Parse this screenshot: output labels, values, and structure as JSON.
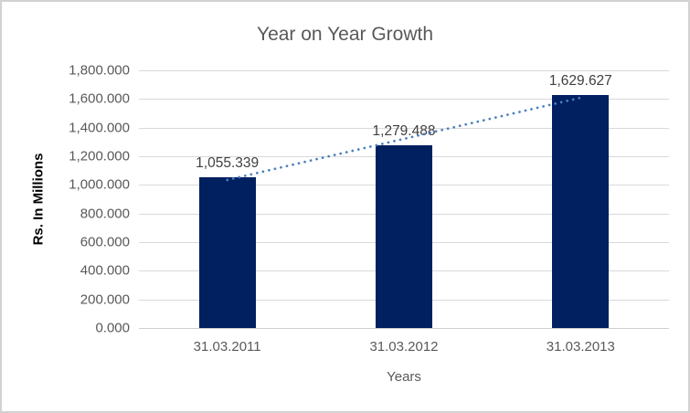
{
  "chart_data": {
    "type": "bar",
    "title": "Year on Year Growth",
    "xlabel": "Years",
    "ylabel": "Rs. In Millions",
    "categories": [
      "31.03.2011",
      "31.03.2012",
      "31.03.2013"
    ],
    "values": [
      1055.339,
      1279.488,
      1629.627
    ],
    "value_labels": [
      "1,055.339",
      "1,279.488",
      "1,629.627"
    ],
    "ylim": [
      0,
      1800
    ],
    "y_tick_step": 200,
    "y_tick_labels": [
      "0.000",
      "200.000",
      "400.000",
      "600.000",
      "800.000",
      "1,000.000",
      "1,200.000",
      "1,400.000",
      "1,600.000",
      "1,800.000"
    ],
    "grid": true,
    "legend": "none",
    "trendline": {
      "type": "linear",
      "style": "dotted",
      "color": "#4a7fc1"
    },
    "colors": {
      "bar": "#002060",
      "gridline": "#d9d9d9",
      "axis_line": "#cfcfcf",
      "title_text": "#595959",
      "tick_text": "#595959",
      "data_label_text": "#404040",
      "ylabel_text": "#000000",
      "chart_border": "#d2d2d2",
      "background": "#ffffff"
    }
  }
}
